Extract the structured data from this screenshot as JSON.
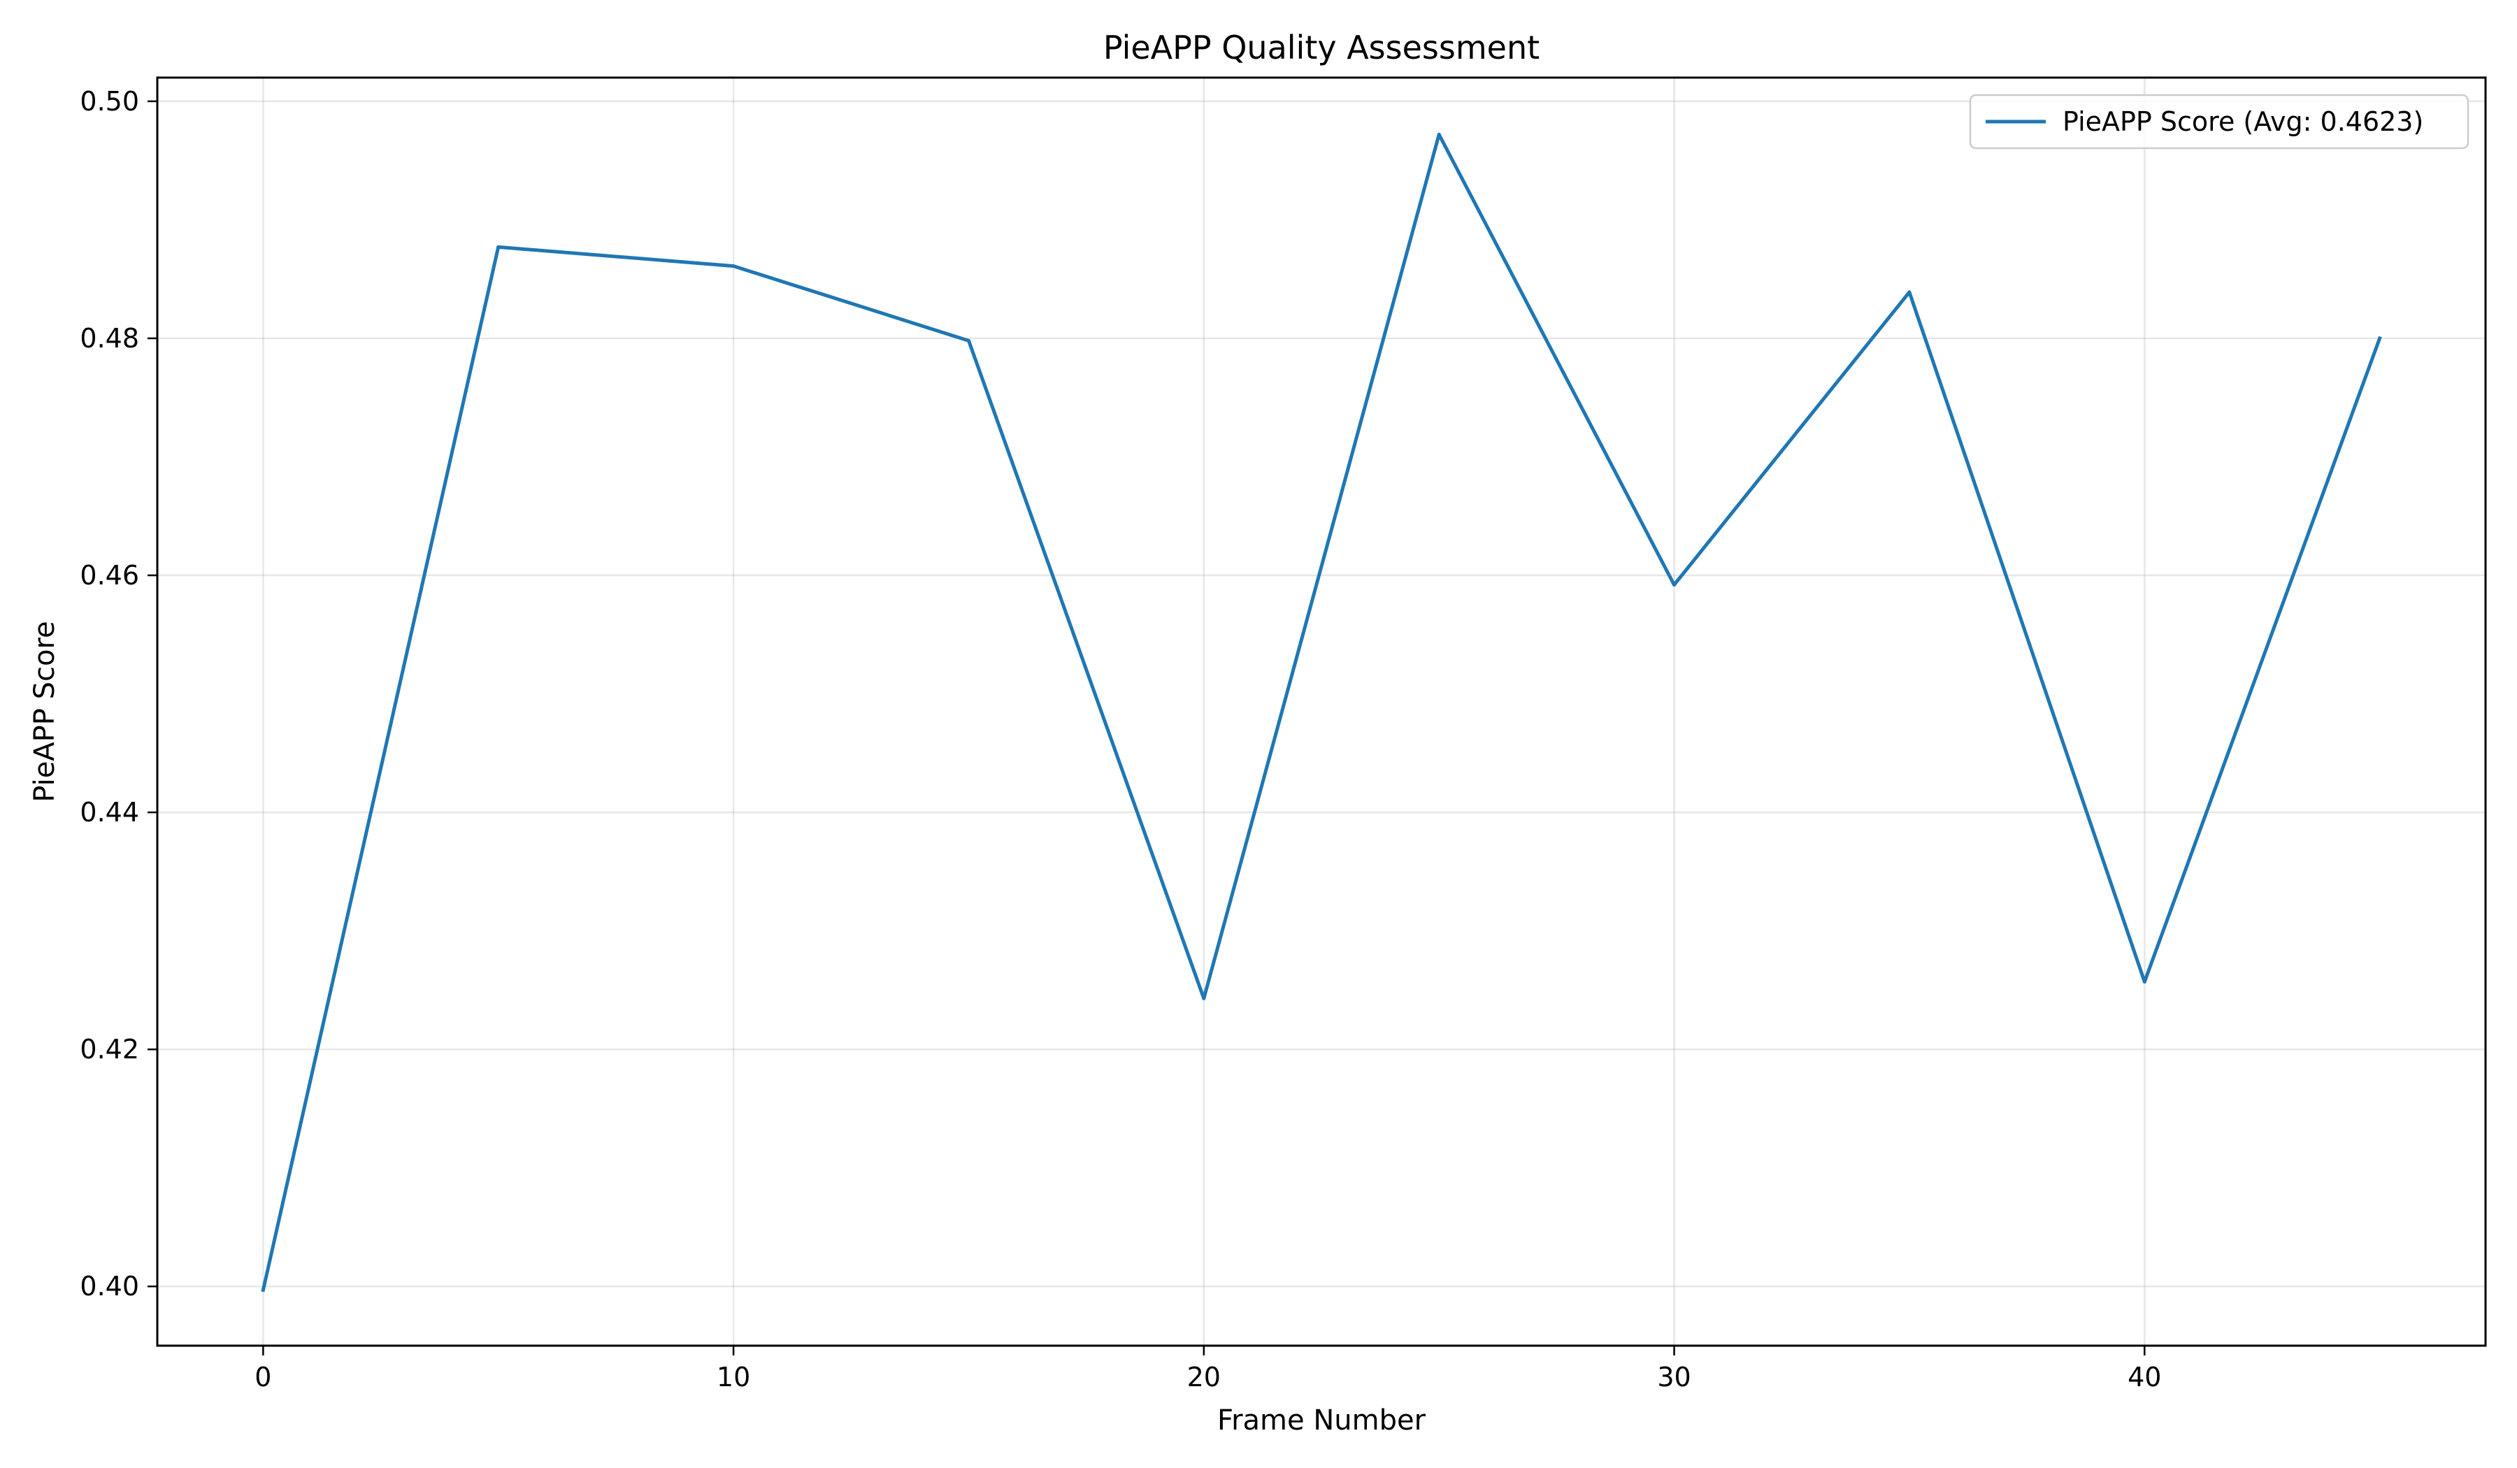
{
  "chart_data": {
    "type": "line",
    "title": "PieAPP Quality Assessment",
    "xlabel": "Frame Number",
    "ylabel": "PieAPP Score",
    "xlim": [
      -2.25,
      47.25
    ],
    "ylim": [
      0.395,
      0.502
    ],
    "xticks": [
      0,
      10,
      20,
      30,
      40
    ],
    "xtick_labels": [
      "0",
      "10",
      "20",
      "30",
      "40"
    ],
    "yticks": [
      0.4,
      0.42,
      0.44,
      0.46,
      0.48,
      0.5
    ],
    "ytick_labels": [
      "0.40",
      "0.42",
      "0.44",
      "0.46",
      "0.48",
      "0.50"
    ],
    "grid": true,
    "legend_position": "upper right",
    "series": [
      {
        "name": "PieAPP Score (Avg: 0.4623)",
        "color": "#1f77b4",
        "x": [
          0,
          5,
          10,
          15,
          20,
          25,
          30,
          35,
          40,
          45
        ],
        "y": [
          0.3997,
          0.4877,
          0.4861,
          0.4798,
          0.4243,
          0.4972,
          0.4592,
          0.4839,
          0.4257,
          0.48
        ]
      }
    ]
  }
}
